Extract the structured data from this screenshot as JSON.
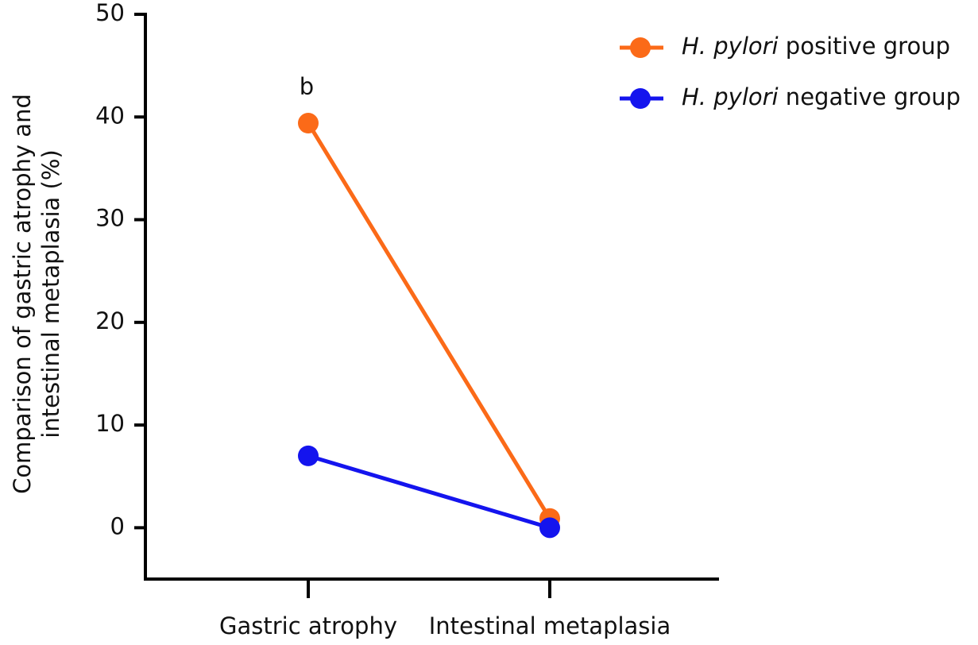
{
  "chart_data": {
    "type": "line",
    "y_label": [
      "Comparison of gastric atrophy and",
      "intestinal metaplasia (%)"
    ],
    "categories": [
      "Gastric atrophy",
      "Intestinal metaplasia"
    ],
    "series": [
      {
        "name": "H. pylori positive group",
        "color": "#fb6a18",
        "values": [
          39.4,
          0.9
        ]
      },
      {
        "name": "H. pylori negative group",
        "color": "#1414ee",
        "values": [
          7.0,
          0.0
        ]
      }
    ],
    "annotations": [
      {
        "text": "b",
        "category": 0,
        "series": 0
      }
    ],
    "ylim": [
      -5,
      50
    ],
    "yticks": [
      0,
      10,
      20,
      30,
      40,
      50
    ],
    "legend": "top-right",
    "grid": false
  }
}
